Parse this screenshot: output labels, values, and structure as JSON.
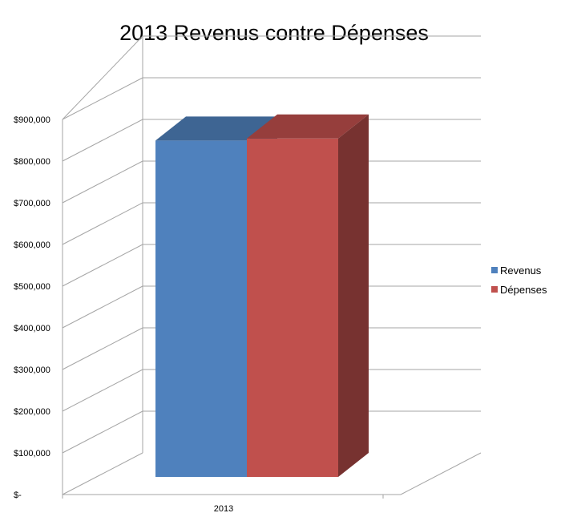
{
  "chart_data": {
    "type": "bar",
    "title": "2013 Revenus contre Dépenses",
    "categories": [
      "2013"
    ],
    "series": [
      {
        "name": "Revenus",
        "values": [
          830000
        ],
        "color": "#4f81bd"
      },
      {
        "name": "Dépenses",
        "values": [
          835000
        ],
        "color": "#c0504d"
      }
    ],
    "yticks": [
      "$-",
      "$100,000",
      "$200,000",
      "$300,000",
      "$400,000",
      "$500,000",
      "$600,000",
      "$700,000",
      "$800,000",
      "$900,000"
    ],
    "ylim": [
      0,
      900000
    ],
    "grid": true,
    "three_d": true,
    "legend_position": "right"
  }
}
